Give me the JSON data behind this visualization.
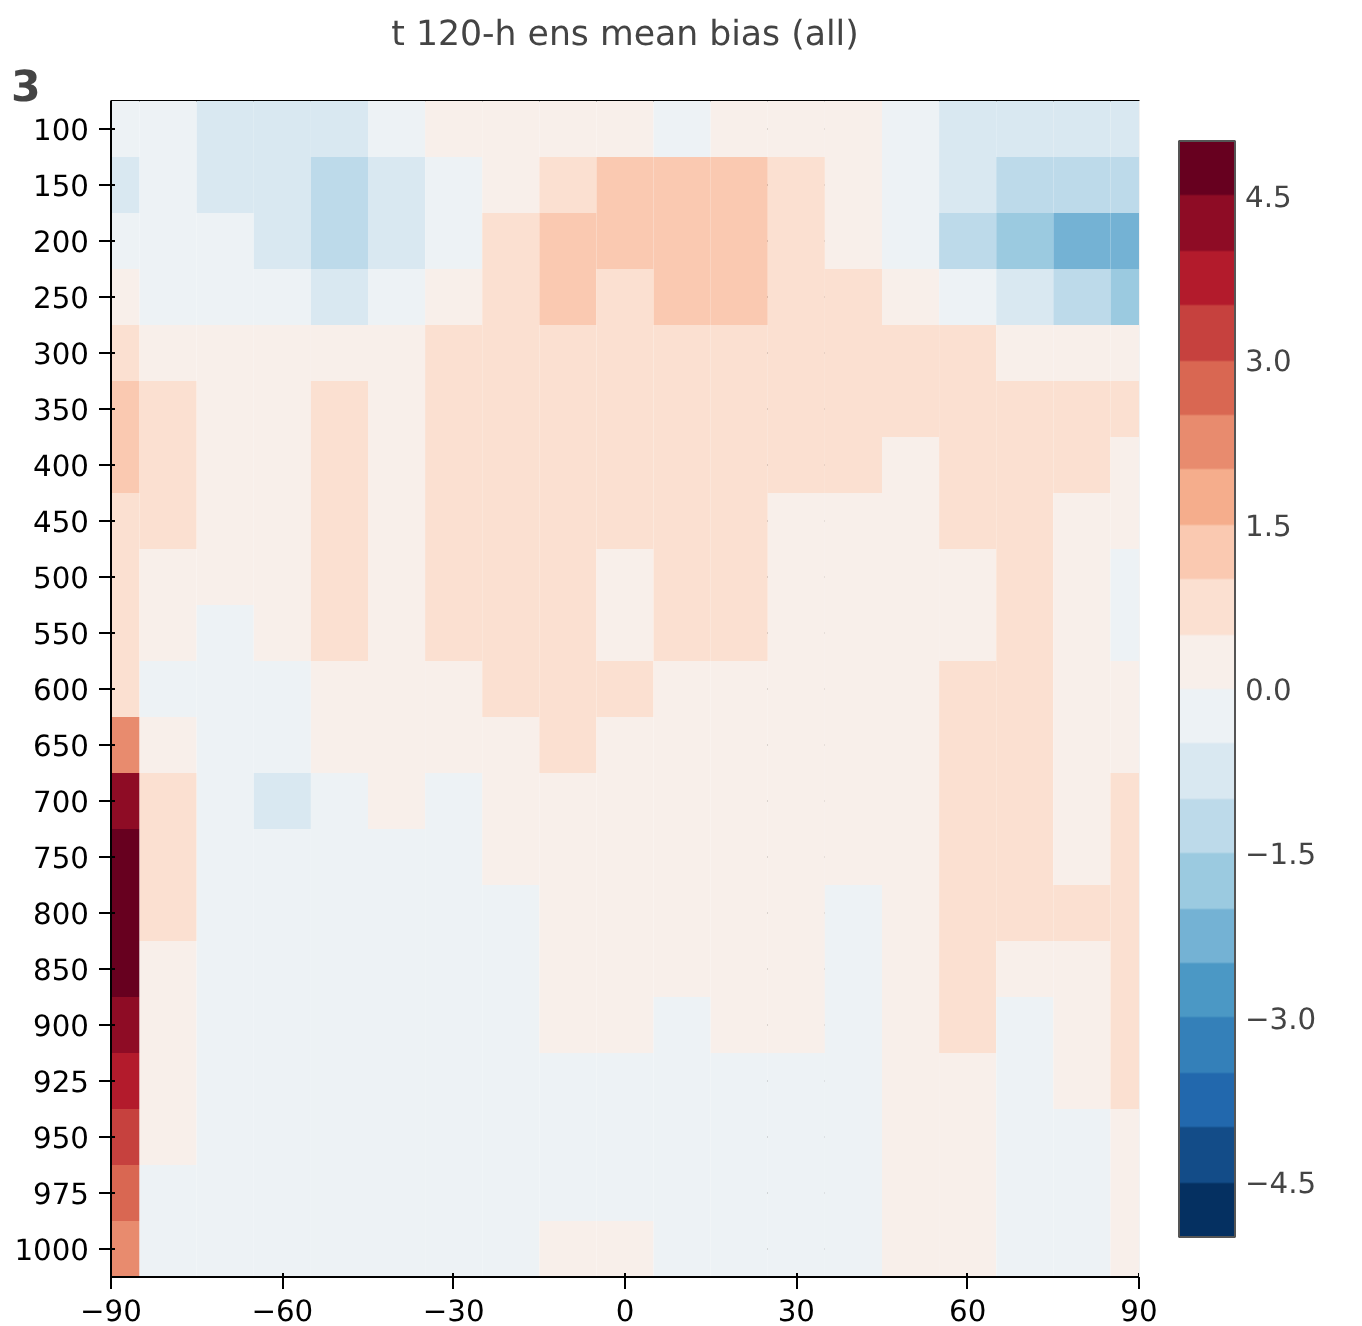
{
  "chart_data": {
    "type": "heatmap",
    "title": "t 120-h ens mean bias (all)",
    "annotations": [
      "3"
    ],
    "x": [
      -90,
      -80,
      -70,
      -60,
      -50,
      -40,
      -30,
      -20,
      -10,
      0,
      10,
      20,
      30,
      40,
      50,
      60,
      70,
      80,
      90
    ],
    "y_categories": [
      "100",
      "150",
      "200",
      "250",
      "300",
      "350",
      "400",
      "450",
      "500",
      "550",
      "600",
      "650",
      "700",
      "750",
      "800",
      "850",
      "900",
      "925",
      "950",
      "975",
      "1000"
    ],
    "cells": [
      [
        -0.3,
        -0.3,
        -0.7,
        -0.8,
        -0.7,
        -0.3,
        0.2,
        0.3,
        0.4,
        0.2,
        -0.1,
        0.3,
        0.3,
        0.2,
        -0.3,
        -0.7,
        -0.7,
        -0.7,
        -0.7
      ],
      [
        -0.6,
        -0.4,
        -0.7,
        -0.9,
        -1.2,
        -0.8,
        -0.2,
        0.4,
        0.7,
        1.2,
        1.2,
        1.2,
        0.7,
        0.3,
        -0.4,
        -0.8,
        -1.1,
        -1.2,
        -1.1
      ],
      [
        -0.3,
        -0.4,
        -0.4,
        -0.6,
        -1.2,
        -0.8,
        -0.2,
        0.7,
        1.2,
        1.2,
        1.2,
        1.2,
        0.8,
        0.4,
        -0.4,
        -1.3,
        -2.0,
        -2.3,
        -2.4
      ],
      [
        0.1,
        -0.1,
        -0.2,
        -0.3,
        -0.6,
        -0.2,
        0.3,
        0.7,
        1.1,
        0.9,
        1.1,
        1.1,
        0.8,
        0.6,
        0.2,
        -0.2,
        -0.9,
        -1.5,
        -1.6
      ],
      [
        0.6,
        0.4,
        0.2,
        0.2,
        0.2,
        0.2,
        0.6,
        0.7,
        0.8,
        0.8,
        0.7,
        0.7,
        0.7,
        0.6,
        0.6,
        0.5,
        0.3,
        0.1,
        0.1
      ],
      [
        1.1,
        0.6,
        0.3,
        0.4,
        0.6,
        0.3,
        0.6,
        0.7,
        0.8,
        0.8,
        0.8,
        0.7,
        0.7,
        0.6,
        0.7,
        0.7,
        0.7,
        0.6,
        0.6
      ],
      [
        1.0,
        0.6,
        0.3,
        0.4,
        0.7,
        0.4,
        0.6,
        0.7,
        0.8,
        0.8,
        0.7,
        0.7,
        0.6,
        0.5,
        0.4,
        0.6,
        0.7,
        0.5,
        0.3
      ],
      [
        0.7,
        0.5,
        0.3,
        0.3,
        0.7,
        0.4,
        0.6,
        0.7,
        0.7,
        0.6,
        0.7,
        0.7,
        0.4,
        0.3,
        0.4,
        0.5,
        0.6,
        0.4,
        0.2
      ],
      [
        0.6,
        0.4,
        0.1,
        0.2,
        0.7,
        0.4,
        0.6,
        0.7,
        0.6,
        0.4,
        0.6,
        0.6,
        0.4,
        0.3,
        0.3,
        0.4,
        0.6,
        0.3,
        -0.1
      ],
      [
        0.6,
        0.3,
        -0.2,
        0.1,
        0.6,
        0.4,
        0.5,
        0.6,
        0.6,
        0.4,
        0.5,
        0.6,
        0.3,
        0.3,
        0.3,
        0.3,
        0.6,
        0.3,
        -0.1
      ],
      [
        0.8,
        -0.1,
        -0.2,
        -0.1,
        0.4,
        0.3,
        0.4,
        0.6,
        0.6,
        0.5,
        0.4,
        0.3,
        0.3,
        0.3,
        0.4,
        0.5,
        0.6,
        0.4,
        0.2
      ],
      [
        2.0,
        0.3,
        -0.3,
        -0.1,
        0.2,
        0.3,
        0.4,
        0.4,
        0.5,
        0.3,
        0.3,
        0.3,
        0.3,
        0.3,
        0.4,
        0.6,
        0.5,
        0.4,
        0.3
      ],
      [
        4.0,
        0.5,
        -0.4,
        -0.6,
        -0.2,
        0.1,
        -0.1,
        0.3,
        0.3,
        0.3,
        0.3,
        0.3,
        0.3,
        0.3,
        0.4,
        0.6,
        0.7,
        0.3,
        0.6
      ],
      [
        4.5,
        0.6,
        -0.3,
        -0.3,
        -0.2,
        -0.2,
        -0.2,
        0.2,
        0.3,
        0.3,
        0.3,
        0.2,
        0.3,
        0.3,
        0.3,
        0.7,
        0.6,
        0.4,
        0.7
      ],
      [
        4.5,
        0.6,
        -0.1,
        -0.2,
        -0.3,
        -0.2,
        -0.2,
        -0.1,
        0.3,
        0.3,
        0.3,
        0.3,
        0.2,
        -0.1,
        0.3,
        0.7,
        0.5,
        0.5,
        0.7
      ],
      [
        4.5,
        0.4,
        -0.1,
        -0.4,
        -0.3,
        -0.3,
        -0.2,
        -0.2,
        0.2,
        0.2,
        0.3,
        0.2,
        0.2,
        -0.2,
        0.2,
        0.6,
        0.3,
        0.3,
        0.8
      ],
      [
        4.0,
        0.3,
        -0.1,
        -0.5,
        -0.4,
        -0.3,
        -0.2,
        -0.2,
        0.1,
        0.1,
        -0.1,
        0.1,
        0.1,
        -0.2,
        0.1,
        0.5,
        -0.2,
        0.2,
        0.9
      ],
      [
        3.5,
        0.2,
        -0.2,
        -0.5,
        -0.5,
        -0.3,
        -0.2,
        -0.1,
        -0.1,
        -0.1,
        -0.1,
        -0.1,
        -0.1,
        -0.2,
        0.1,
        0.4,
        -0.2,
        0.1,
        0.7
      ],
      [
        3.0,
        0.1,
        -0.2,
        -0.4,
        -0.3,
        -0.2,
        -0.1,
        -0.1,
        -0.1,
        -0.1,
        -0.1,
        -0.1,
        -0.1,
        -0.2,
        0.1,
        0.3,
        -0.3,
        -0.1,
        0.4
      ],
      [
        2.5,
        -0.1,
        -0.2,
        -0.4,
        -0.3,
        -0.2,
        -0.1,
        -0.1,
        -0.1,
        -0.1,
        -0.1,
        -0.1,
        -0.1,
        -0.2,
        0.1,
        0.2,
        -0.4,
        -0.2,
        0.3
      ],
      [
        2.0,
        -0.2,
        -0.2,
        -0.3,
        -0.3,
        -0.2,
        -0.1,
        -0.1,
        0.1,
        0.1,
        -0.1,
        -0.1,
        -0.1,
        -0.2,
        0.1,
        0.1,
        -0.3,
        -0.2,
        0.2
      ]
    ],
    "xlim": [
      -90,
      90
    ],
    "xticks": [
      {
        "value": -90,
        "label": "−90"
      },
      {
        "value": -60,
        "label": "−60"
      },
      {
        "value": -30,
        "label": "−30"
      },
      0,
      30,
      60,
      90
    ],
    "clim": [
      -5,
      5
    ],
    "cticks": [
      {
        "value": -4.5,
        "label": "−4.5"
      },
      {
        "value": -3,
        "label": "−3.0"
      },
      {
        "value": -1.5,
        "label": "−1.5"
      },
      {
        "value": 0,
        "label": "0.0"
      },
      1.5,
      {
        "value": 3,
        "label": "3.0"
      },
      4.5
    ],
    "grid": true
  }
}
